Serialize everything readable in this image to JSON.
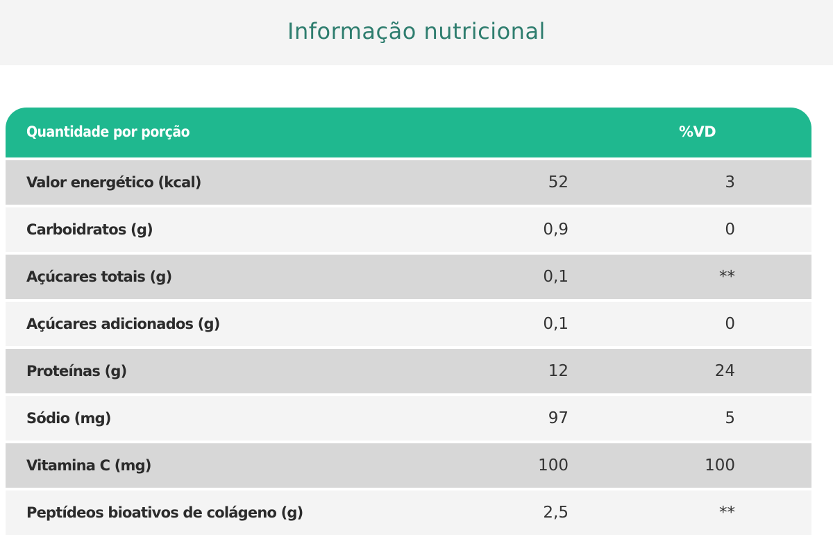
{
  "header": {
    "title": "Informação nutricional"
  },
  "table": {
    "columns": {
      "label": "Quantidade por porção",
      "vd": "%VD"
    },
    "rows": [
      {
        "nutrient": "Valor energético (kcal)",
        "amount": "52",
        "vd": "3"
      },
      {
        "nutrient": "Carboidratos (g)",
        "amount": "0,9",
        "vd": "0"
      },
      {
        "nutrient": "Açúcares totais (g)",
        "amount": "0,1",
        "vd": "**"
      },
      {
        "nutrient": "Açúcares adicionados (g)",
        "amount": "0,1",
        "vd": "0"
      },
      {
        "nutrient": "Proteínas (g)",
        "amount": "12",
        "vd": "24"
      },
      {
        "nutrient": "Sódio (mg)",
        "amount": "97",
        "vd": "5"
      },
      {
        "nutrient": "Vitamina C (mg)",
        "amount": "100",
        "vd": "100"
      },
      {
        "nutrient": "Peptídeos bioativos de colágeno (g)",
        "amount": "2,5",
        "vd": "**"
      }
    ]
  },
  "colors": {
    "title": "#2e7d6e",
    "header_bg": "#1fb88f",
    "row_dark": "#d7d7d7",
    "row_light": "#f4f4f4"
  }
}
